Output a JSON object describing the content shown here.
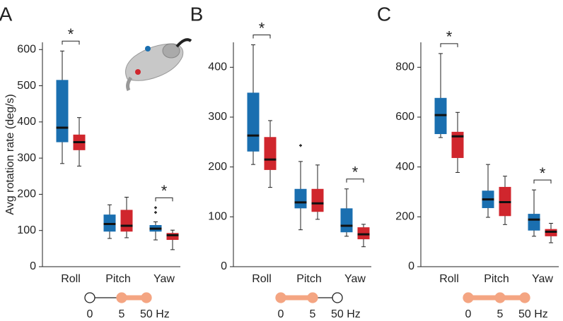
{
  "chart_data": [
    {
      "type": "box",
      "label": "A",
      "ylabel": "Avg rotation rate (deg/s)",
      "categories": [
        "Roll",
        "Pitch",
        "Yaw"
      ],
      "series": [
        {
          "color": "#1a6fb0",
          "values": [
            {
              "min": 285,
              "q1": 344,
              "median": 384,
              "q3": 516,
              "max": 596
            },
            {
              "min": 78,
              "q1": 97,
              "median": 118,
              "q3": 144,
              "max": 171
            },
            {
              "min": 74,
              "q1": 97,
              "median": 105,
              "q3": 115,
              "max": 124,
              "outliers": [
                150,
                163
              ]
            }
          ]
        },
        {
          "color": "#d0262d",
          "values": [
            {
              "min": 278,
              "q1": 322,
              "median": 344,
              "q3": 365,
              "max": 412
            },
            {
              "min": 80,
              "q1": 97,
              "median": 113,
              "q3": 157,
              "max": 192
            },
            {
              "min": 47,
              "q1": 74,
              "median": 87,
              "q3": 93,
              "max": 101
            }
          ]
        }
      ],
      "significance": [
        "*",
        null,
        "*"
      ],
      "ylim": [
        0,
        620
      ],
      "yticks": [
        0,
        100,
        200,
        300,
        400,
        500,
        600
      ],
      "filter": {
        "labels": [
          "0",
          "5",
          "50 Hz"
        ],
        "filled": [
          false,
          true,
          true
        ]
      }
    },
    {
      "type": "box",
      "label": "B",
      "categories": [
        "Roll",
        "Pitch",
        "Yaw"
      ],
      "series": [
        {
          "color": "#1a6fb0",
          "values": [
            {
              "min": 205,
              "q1": 231,
              "median": 263,
              "q3": 349,
              "max": 445
            },
            {
              "min": 74,
              "q1": 117,
              "median": 129,
              "q3": 156,
              "max": 211,
              "outliers": [
                243
              ]
            },
            {
              "min": 61,
              "q1": 69,
              "median": 82,
              "q3": 117,
              "max": 156
            }
          ]
        },
        {
          "color": "#d0262d",
          "values": [
            {
              "min": 159,
              "q1": 194,
              "median": 215,
              "q3": 260,
              "max": 293
            },
            {
              "min": 95,
              "q1": 110,
              "median": 127,
              "q3": 156,
              "max": 204
            },
            {
              "min": 40,
              "q1": 55,
              "median": 65,
              "q3": 79,
              "max": 85
            }
          ]
        }
      ],
      "significance": [
        "*",
        null,
        "*"
      ],
      "ylim": [
        0,
        450
      ],
      "yticks": [
        0,
        100,
        200,
        300,
        400
      ],
      "filter": {
        "labels": [
          "0",
          "5",
          "50 Hz"
        ],
        "filled": [
          true,
          true,
          false
        ]
      }
    },
    {
      "type": "box",
      "label": "C",
      "categories": [
        "Roll",
        "Pitch",
        "Yaw"
      ],
      "series": [
        {
          "color": "#1a6fb0",
          "values": [
            {
              "min": 518,
              "q1": 532,
              "median": 608,
              "q3": 677,
              "max": 855
            },
            {
              "min": 198,
              "q1": 235,
              "median": 270,
              "q3": 305,
              "max": 410
            },
            {
              "min": 122,
              "q1": 145,
              "median": 189,
              "q3": 212,
              "max": 308
            }
          ]
        },
        {
          "color": "#d0262d",
          "values": [
            {
              "min": 378,
              "q1": 436,
              "median": 523,
              "q3": 541,
              "max": 619
            },
            {
              "min": 169,
              "q1": 203,
              "median": 259,
              "q3": 320,
              "max": 363
            },
            {
              "min": 96,
              "q1": 122,
              "median": 140,
              "q3": 151,
              "max": 174
            }
          ]
        }
      ],
      "significance": [
        "*",
        null,
        "*"
      ],
      "ylim": [
        0,
        900
      ],
      "yticks": [
        0,
        200,
        400,
        600,
        800
      ],
      "filter": {
        "labels": [
          "0",
          "5",
          "50 Hz"
        ],
        "filled": [
          true,
          true,
          true
        ]
      }
    }
  ]
}
